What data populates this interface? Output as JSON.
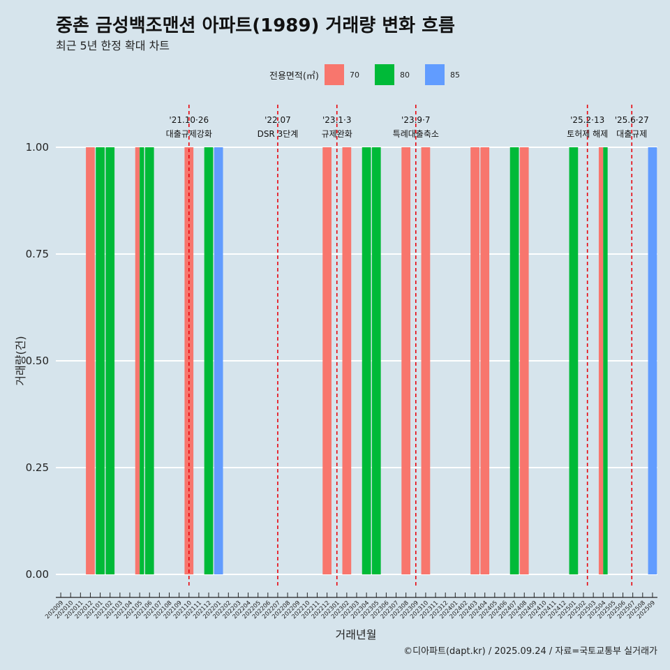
{
  "title": "중촌 금성백조맨션 아파트(1989) 거래량 변화 흐름",
  "subtitle": "최근 5년 한정 확대 차트",
  "caption": "©디아파트(dapt.kr) / 2025.09.24 / 자료=국토교통부 실거래가",
  "colors": {
    "background": "#d6e4ec",
    "grid": "#ffffff",
    "vline": "#e8000b",
    "s70": "#f8766d",
    "s80": "#00ba38",
    "s85": "#619cff"
  },
  "chart_data": {
    "type": "bar",
    "title": "중촌 금성백조맨션 아파트(1989) 거래량 변화 흐름",
    "xlabel": "거래년월",
    "ylabel": "거래량(건)",
    "ylim": [
      0,
      1
    ],
    "yticks": [
      "0.00",
      "0.25",
      "0.50",
      "0.75",
      "1.00"
    ],
    "legend_title": "전용면적(㎡)",
    "legend_position": "top",
    "categories": [
      "202009",
      "202010",
      "202011",
      "202012",
      "202101",
      "202102",
      "202103",
      "202104",
      "202105",
      "202106",
      "202107",
      "202108",
      "202109",
      "202110",
      "202111",
      "202112",
      "202201",
      "202202",
      "202203",
      "202204",
      "202205",
      "202206",
      "202207",
      "202208",
      "202209",
      "202210",
      "202211",
      "202212",
      "202301",
      "202302",
      "202303",
      "202304",
      "202305",
      "202306",
      "202307",
      "202308",
      "202309",
      "202310",
      "202311",
      "202312",
      "202401",
      "202402",
      "202403",
      "202404",
      "202405",
      "202406",
      "202407",
      "202408",
      "202409",
      "202410",
      "202411",
      "202412",
      "202501",
      "202502",
      "202503",
      "202504",
      "202505",
      "202506",
      "202507",
      "202508",
      "202509"
    ],
    "series": [
      {
        "name": "70",
        "color": "#f8766d",
        "points": [
          {
            "month": "202012",
            "value": 1
          },
          {
            "month": "202105",
            "value": 1
          },
          {
            "month": "202110",
            "value": 1
          },
          {
            "month": "202212",
            "value": 1
          },
          {
            "month": "202302",
            "value": 1
          },
          {
            "month": "202308",
            "value": 1
          },
          {
            "month": "202310",
            "value": 1
          },
          {
            "month": "202403",
            "value": 1
          },
          {
            "month": "202404",
            "value": 1
          },
          {
            "month": "202408",
            "value": 1
          },
          {
            "month": "202504",
            "value": 1
          }
        ]
      },
      {
        "name": "80",
        "color": "#00ba38",
        "points": [
          {
            "month": "202101",
            "value": 1
          },
          {
            "month": "202102",
            "value": 1
          },
          {
            "month": "202105",
            "value": 1
          },
          {
            "month": "202106",
            "value": 1
          },
          {
            "month": "202112",
            "value": 1
          },
          {
            "month": "202304",
            "value": 1
          },
          {
            "month": "202305",
            "value": 1
          },
          {
            "month": "202407",
            "value": 1
          },
          {
            "month": "202501",
            "value": 1
          },
          {
            "month": "202504",
            "value": 1
          }
        ]
      },
      {
        "name": "85",
        "color": "#619cff",
        "points": [
          {
            "month": "202201",
            "value": 1
          },
          {
            "month": "202509",
            "value": 1
          }
        ]
      }
    ],
    "annotations": [
      {
        "month": "202110",
        "pos": 0.0,
        "date": "'21.10·26",
        "label": "대출규제강화"
      },
      {
        "month": "202207",
        "pos": 0.0,
        "date": "'22.07",
        "label": "DSR 3단계"
      },
      {
        "month": "202301",
        "pos": 0.0,
        "date": "'23.1·3",
        "label": "규제완화"
      },
      {
        "month": "202309",
        "pos": 0.0,
        "date": "'23.9·7",
        "label": "특례대출축소"
      },
      {
        "month": "202502",
        "pos": 0.4,
        "date": "'25.2·13",
        "label": "토허제 해제"
      },
      {
        "month": "202506",
        "pos": 0.9,
        "date": "'25.6·27",
        "label": "대출규제"
      }
    ]
  }
}
